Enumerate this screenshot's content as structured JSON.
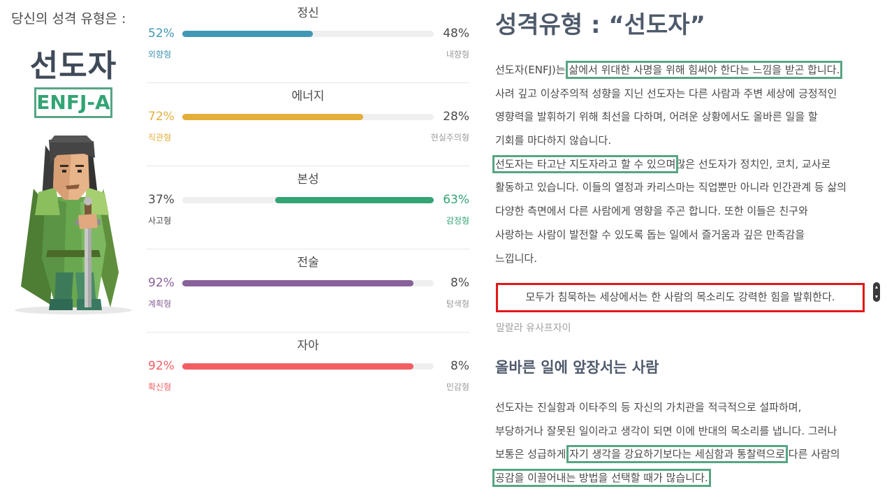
{
  "left": {
    "intro": "당신의 성격 유형은 :",
    "type_name": "선도자",
    "type_code": "ENFJ-A"
  },
  "traits": [
    {
      "name": "정신",
      "left_pct": "52%",
      "right_pct": "48%",
      "left_label": "외향형",
      "right_label": "내향형",
      "value": 52,
      "fill_side": "left",
      "color": "#4298b4",
      "highlight": "left"
    },
    {
      "name": "에너지",
      "left_pct": "72%",
      "right_pct": "28%",
      "left_label": "직관형",
      "right_label": "현실주의형",
      "value": 72,
      "fill_side": "left",
      "color": "#e4ae3a",
      "highlight": "left"
    },
    {
      "name": "본성",
      "left_pct": "37%",
      "right_pct": "63%",
      "left_label": "사고형",
      "right_label": "감정형",
      "value": 63,
      "fill_side": "right",
      "color": "#33a474",
      "highlight": "right"
    },
    {
      "name": "전술",
      "left_pct": "92%",
      "right_pct": "8%",
      "left_label": "계획형",
      "right_label": "탐색형",
      "value": 92,
      "fill_side": "left",
      "color": "#88619a",
      "highlight": "left"
    },
    {
      "name": "자아",
      "left_pct": "92%",
      "right_pct": "8%",
      "left_label": "확신형",
      "right_label": "민감형",
      "value": 92,
      "fill_side": "left",
      "color": "#f25e62",
      "highlight": "left"
    }
  ],
  "article": {
    "heading": "성격유형 : “선도자”",
    "p1": {
      "l1_a": "선도자(ENFJ)는 ",
      "l1_hl": "삶에서 위대한 사명을 위해 힘써야 한다는 느낌을 받곤 합니다.",
      "l2": "사려 깊고 이상주의적 성향을 지닌 선도자는 다른 사람과 주변 세상에 긍정적인",
      "l3": "영향력을 발휘하기 위해 최선을 다하며, 어려운 상황에서도 올바른 일을 할",
      "l4": "기회를 마다하지 않습니다.",
      "l5_hl": "선도자는 타고난 지도자라고 할 수 있으며",
      "l5_b": "많은 선도자가 정치인, 코치, 교사로",
      "l6": "활동하고 있습니다. 이들의 열정과 카리스마는 직업뿐만 아니라 인간관계 등 삶의",
      "l7": "다양한 측면에서 다른 사람에게 영향을 주곤 합니다. 또한 이들은 친구와",
      "l8": "사랑하는 사람이 발전할 수 있도록 돕는 일에서 즐거움과 깊은 만족감을",
      "l9": "느낍니다."
    },
    "quote": "모두가 침묵하는 세상에서는 한 사람의 목소리도 강력한 힘을 발휘한다.",
    "quote_author": "말랄라 유사프자이",
    "subheading": "올바른 일에 앞장서는 사람",
    "p2": {
      "l1": "선도자는 진실함과 이타주의 등 자신의 가치관을 적극적으로 설파하며,",
      "l2": "부당하거나 잘못된 일이라고 생각이 되면 이에 반대의 목소리를 냅니다. 그러나",
      "l3_a": "보통은 성급하게 ",
      "l3_hl": "자기 생각을 강요하기보다는 세심함과 통찰력으로",
      "l3_b": " 다른 사람의",
      "l4_hl": "공감을 이끌어내는 방법을 선택할 때가 많습니다."
    }
  },
  "colors": {
    "highlight_box": "#57a584",
    "quote_box": "#e21717",
    "title_text": "#4e5a6b"
  }
}
